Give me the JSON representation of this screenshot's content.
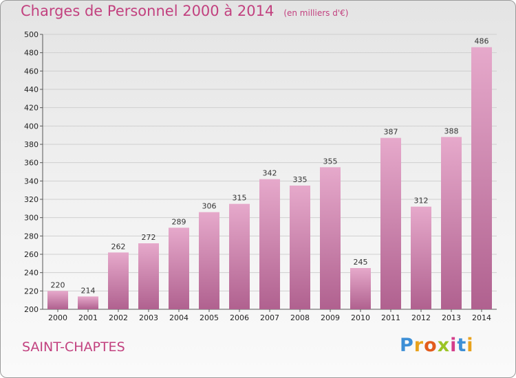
{
  "header": {
    "title": "Charges de Personnel 2000 à 2014",
    "subtitle": "(en milliers d'€)"
  },
  "footer": {
    "commune": "SAINT-CHAPTES",
    "logo_letters": [
      "P",
      "r",
      "o",
      "x",
      "i",
      "t",
      "i"
    ],
    "logo_colors": [
      "#3d8fd6",
      "#e8a21c",
      "#e25c1d",
      "#9bc424",
      "#d43d8b",
      "#3d8fd6",
      "#e8a21c"
    ]
  },
  "colors": {
    "accent": "#c2417f",
    "bar_top": "#e6a9cb",
    "bar_bottom": "#b0618f"
  },
  "chart_data": {
    "type": "bar",
    "title": "Charges de Personnel 2000 à 2014",
    "subtitle": "(en milliers d'€)",
    "categories": [
      "2000",
      "2001",
      "2002",
      "2003",
      "2004",
      "2005",
      "2006",
      "2007",
      "2008",
      "2009",
      "2010",
      "2011",
      "2012",
      "2013",
      "2014"
    ],
    "values": [
      220,
      214,
      262,
      272,
      289,
      306,
      315,
      342,
      335,
      355,
      245,
      387,
      312,
      388,
      486
    ],
    "ylim": [
      200,
      500
    ],
    "yticks": [
      200,
      220,
      240,
      260,
      280,
      300,
      320,
      340,
      360,
      380,
      400,
      420,
      440,
      460,
      480,
      500
    ],
    "grid": true,
    "legend": "none"
  }
}
